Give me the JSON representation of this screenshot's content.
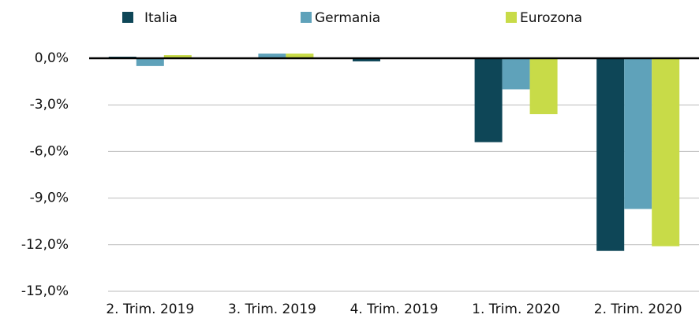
{
  "chart_data": {
    "type": "bar",
    "categories": [
      "2. Trim. 2019",
      "3. Trim. 2019",
      "4. Trim. 2019",
      "1. Trim. 2020",
      "2. Trim. 2020"
    ],
    "series": [
      {
        "name": "Italia",
        "color": "#0e4657",
        "values": [
          0.1,
          0.0,
          -0.2,
          -5.4,
          -12.4
        ]
      },
      {
        "name": "Germania",
        "color": "#5fa2ba",
        "values": [
          -0.5,
          0.3,
          0.0,
          -2.0,
          -9.7
        ]
      },
      {
        "name": "Eurozona",
        "color": "#c8db48",
        "values": [
          0.2,
          0.3,
          0.0,
          -3.6,
          -12.1
        ]
      }
    ],
    "ylim": [
      -15,
      0
    ],
    "yticks": [
      {
        "value": 0,
        "label": "0,0%"
      },
      {
        "value": -3,
        "label": "-3,0%"
      },
      {
        "value": -6,
        "label": "-6,0%"
      },
      {
        "value": -9,
        "label": "-9,0%"
      },
      {
        "value": -12,
        "label": "-12,0%"
      },
      {
        "value": -15,
        "label": "-15,0%"
      }
    ],
    "grid": true,
    "legend": "top"
  }
}
